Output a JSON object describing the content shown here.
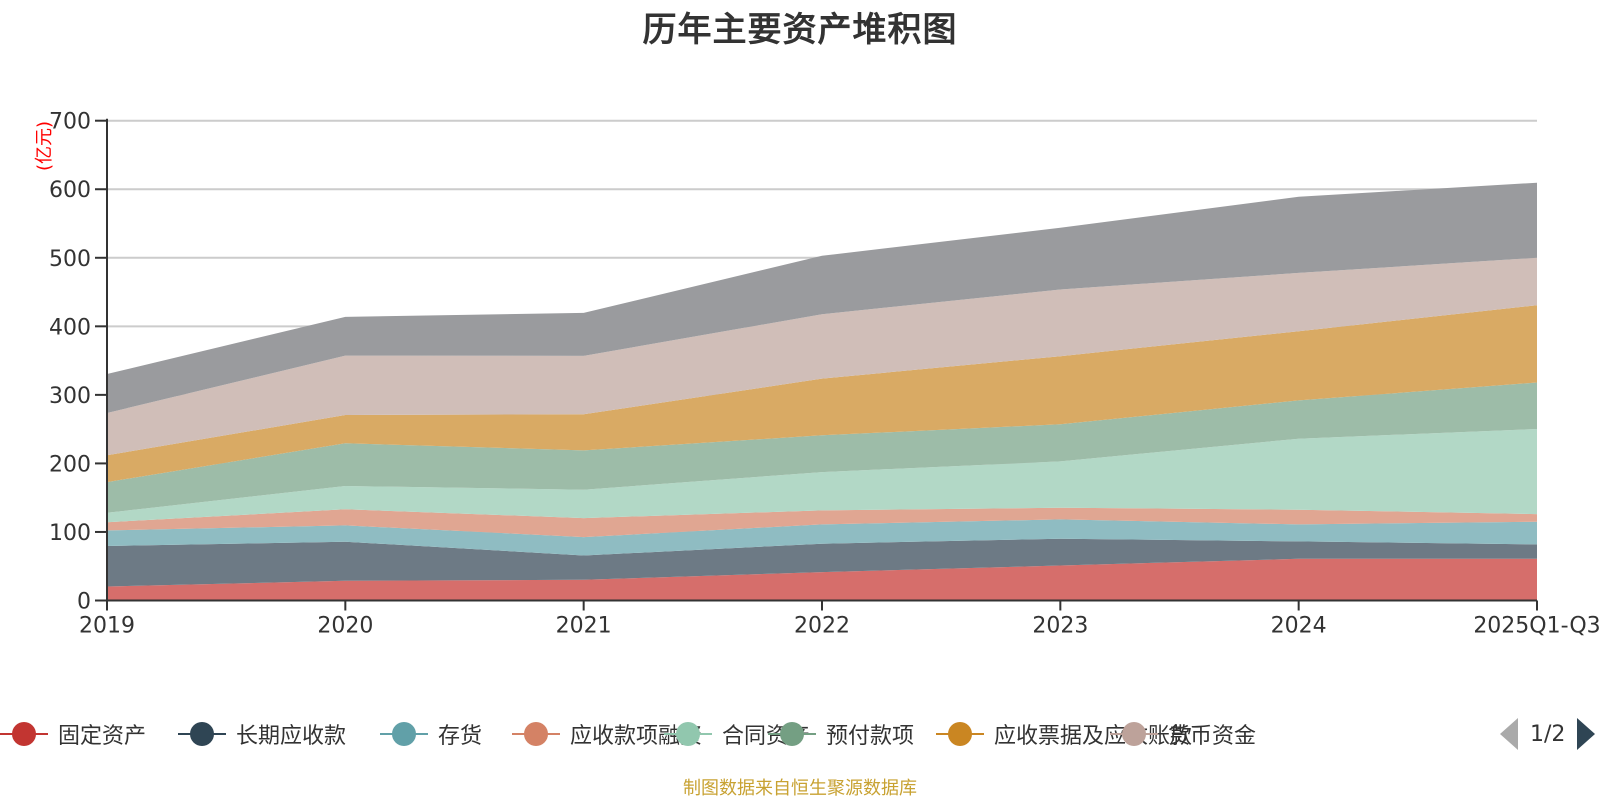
{
  "chart_data": {
    "type": "area",
    "stacked": true,
    "title": "历年主要资产堆积图",
    "xlabel": "",
    "ylabel": "(亿元)",
    "ylim": [
      0,
      700
    ],
    "yticks": [
      0,
      100,
      200,
      300,
      400,
      500,
      600,
      700
    ],
    "categories": [
      "2019",
      "2020",
      "2021",
      "2022",
      "2023",
      "2024",
      "2025Q1-Q3"
    ],
    "grid": true,
    "legend_position": "bottom",
    "series": [
      {
        "name": "固定资产",
        "color": "#c23531",
        "area_color": "#d66e6b",
        "values": [
          20.4,
          28.7,
          30.2,
          41.4,
          51.1,
          60.9,
          60.9
        ]
      },
      {
        "name": "长期应收款",
        "color": "#2f4554",
        "area_color": "#6d7a85",
        "values": [
          59.1,
          57.1,
          35.5,
          41.4,
          39.0,
          25.3,
          20.9
        ]
      },
      {
        "name": "存货",
        "color": "#61a0a8",
        "area_color": "#8fbcc2",
        "values": [
          22.7,
          23.7,
          26.8,
          28.2,
          28.2,
          24.8,
          33.2
        ]
      },
      {
        "name": "应收款项融资",
        "color": "#d48265",
        "area_color": "#e0a692",
        "values": [
          12.0,
          23.5,
          27.7,
          20.4,
          17.1,
          21.4,
          11.0
        ]
      },
      {
        "name": "合同资产",
        "color": "#91c7ae",
        "area_color": "#b2d8c6",
        "values": [
          13.8,
          34.0,
          41.4,
          56.0,
          67.6,
          103.7,
          124.2
        ]
      },
      {
        "name": "预付款项",
        "color": "#749f83",
        "area_color": "#9dbca8",
        "values": [
          44.8,
          62.3,
          57.4,
          53.6,
          54.0,
          55.9,
          67.8
        ]
      },
      {
        "name": "应收票据及应收账款",
        "color": "#ca8622",
        "area_color": "#d9aa64",
        "values": [
          39.0,
          41.4,
          52.6,
          82.8,
          99.4,
          100.9,
          112.8
        ]
      },
      {
        "name": "货币资金",
        "color": "#bda29a",
        "area_color": "#d0beb8",
        "values": [
          61.8,
          86.6,
          85.2,
          93.9,
          97.4,
          85.1,
          69.2
        ]
      },
      {
        "name": "",
        "color": "#6e7074",
        "area_color": "#9a9b9e",
        "values": [
          56.9,
          56.5,
          62.8,
          85.2,
          90.0,
          111.0,
          109.5
        ]
      }
    ]
  },
  "legend": {
    "items": [
      {
        "label": "固定资产",
        "color": "#c23531"
      },
      {
        "label": "长期应收款",
        "color": "#2f4554"
      },
      {
        "label": "存货",
        "color": "#61a0a8"
      },
      {
        "label": "应收款项融资",
        "color": "#d48265"
      },
      {
        "label": "合同资产",
        "color": "#91c7ae"
      },
      {
        "label": "预付款项",
        "color": "#749f83"
      },
      {
        "label": "应收票据及应收账款",
        "color": "#ca8622"
      },
      {
        "label": "货币资金",
        "color": "#bda29a"
      }
    ],
    "page_indicator": "1/2"
  },
  "footer": {
    "source_note": "制图数据来自恒生聚源数据库"
  }
}
